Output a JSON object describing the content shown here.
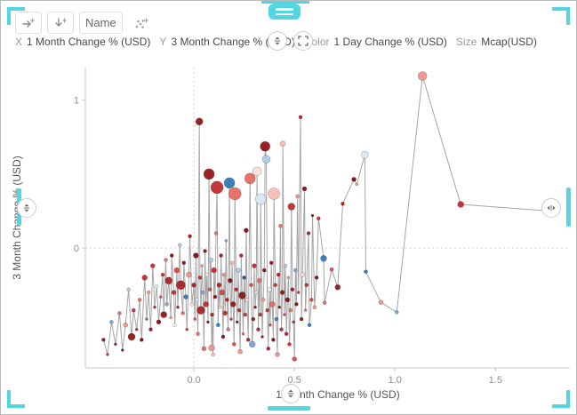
{
  "toolbar": {
    "rerun_button_icon": "arrow-right-plus",
    "drilldown_button_icon": "arrow-down-plus",
    "name_button_label": "Name",
    "scatter_button_icon": "scatter-dots-plus"
  },
  "bindings_bar": {
    "x_label": "X",
    "x_value": "1 Month Change % (USD)",
    "y_label": "Y",
    "y_value": "3 Month Change % (USD)",
    "color_label": "Color",
    "color_value": "1 Day Change % (USD)",
    "size_label": "Size",
    "size_value": "Mcap(USD)"
  },
  "colors": {
    "accent_teal": "#52d7e2",
    "axis_line": "#c9c9c9",
    "grid_dash": "#d4d4d4",
    "connector_line": "#a6a6a6",
    "tick_text": "#8f8f8f"
  },
  "chart_data": {
    "type": "scatter",
    "title": "",
    "x_axis": {
      "label": "1 Month Change % (USD)",
      "range": [
        -0.54,
        1.87
      ],
      "ticks": [
        0.0,
        0.5,
        1.0,
        1.5
      ],
      "tick_labels": [
        "0.0",
        "0.5",
        "1.0",
        "1.5"
      ]
    },
    "y_axis": {
      "label": "3 Month Change % (USD)",
      "range": [
        -0.81,
        1.22
      ],
      "ticks": [
        0,
        1
      ],
      "tick_labels": [
        "0",
        "1"
      ]
    },
    "color_by": "1 Day Change % (USD)",
    "size_by": "Mcap(USD)",
    "legend": "none",
    "grid": "dashed zero lines only",
    "connected": true,
    "palette": [
      "#7f0a10",
      "#8e1317",
      "#a81d22",
      "#c2282e",
      "#d6453c",
      "#e5685f",
      "#ef9185",
      "#f6bcb2",
      "#fbdfd9",
      "#f2f0ee",
      "#dbe7f3",
      "#abcbe6",
      "#74a6d4",
      "#2f76b5",
      "#1b4f8c"
    ],
    "points_format": [
      "x",
      "y",
      "radius_px",
      "palette_index"
    ],
    "points": [
      [
        -0.45,
        -0.62,
        2,
        1
      ],
      [
        -0.43,
        -0.72,
        1.5,
        3
      ],
      [
        -0.41,
        -0.5,
        2,
        12
      ],
      [
        -0.39,
        -0.65,
        1.5,
        1
      ],
      [
        -0.37,
        -0.44,
        2,
        5
      ],
      [
        -0.355,
        -0.69,
        1.5,
        0
      ],
      [
        -0.34,
        -0.52,
        2.5,
        6
      ],
      [
        -0.325,
        -0.28,
        2,
        11
      ],
      [
        -0.31,
        -0.6,
        4,
        1
      ],
      [
        -0.3,
        -0.42,
        2,
        3
      ],
      [
        -0.285,
        -0.55,
        1.5,
        2
      ],
      [
        -0.27,
        -0.35,
        2,
        5
      ],
      [
        -0.26,
        -0.62,
        2,
        0
      ],
      [
        -0.245,
        -0.2,
        3,
        3
      ],
      [
        -0.235,
        -0.48,
        1.5,
        13
      ],
      [
        -0.225,
        -0.3,
        2,
        6
      ],
      [
        -0.215,
        -0.55,
        2,
        1
      ],
      [
        -0.205,
        -0.12,
        2.5,
        3
      ],
      [
        -0.195,
        -0.4,
        1.5,
        2
      ],
      [
        -0.185,
        -0.26,
        2,
        10
      ],
      [
        -0.175,
        -0.5,
        2.5,
        0
      ],
      [
        -0.165,
        -0.33,
        1.5,
        4
      ],
      [
        -0.155,
        -0.18,
        2,
        3
      ],
      [
        -0.15,
        -0.45,
        3.5,
        1
      ],
      [
        -0.14,
        -0.08,
        2,
        5
      ],
      [
        -0.135,
        -0.38,
        2,
        12
      ],
      [
        -0.125,
        -0.22,
        4,
        2
      ],
      [
        -0.115,
        -0.47,
        1.5,
        6
      ],
      [
        -0.11,
        -0.05,
        2,
        0
      ],
      [
        -0.1,
        -0.3,
        2.5,
        3
      ],
      [
        -0.095,
        -0.52,
        2,
        9
      ],
      [
        -0.085,
        -0.15,
        3,
        4
      ],
      [
        -0.08,
        -0.4,
        1.5,
        1
      ],
      [
        -0.07,
        0.02,
        2,
        11
      ],
      [
        -0.065,
        -0.25,
        5,
        2
      ],
      [
        -0.055,
        -0.44,
        2,
        5
      ],
      [
        -0.05,
        -0.1,
        2,
        0
      ],
      [
        -0.04,
        -0.33,
        2.5,
        13
      ],
      [
        -0.035,
        -0.55,
        1.5,
        3
      ],
      [
        -0.025,
        -0.18,
        3,
        6
      ],
      [
        -0.02,
        0.08,
        2,
        1
      ],
      [
        -0.01,
        -0.38,
        2,
        8
      ],
      [
        0.0,
        -0.25,
        2.5,
        2
      ],
      [
        0.005,
        -0.48,
        1.5,
        4
      ],
      [
        0.01,
        -0.05,
        3,
        0
      ],
      [
        0.015,
        -0.35,
        2,
        10
      ],
      [
        0.02,
        -0.58,
        2,
        5
      ],
      [
        0.027,
        0.855,
        4,
        1
      ],
      [
        0.03,
        -0.2,
        2,
        3
      ],
      [
        0.035,
        -0.42,
        4.5,
        2
      ],
      [
        0.04,
        -0.12,
        1.5,
        6
      ],
      [
        0.045,
        -0.3,
        2,
        12
      ],
      [
        0.05,
        -0.68,
        2.5,
        5
      ],
      [
        0.055,
        -0.02,
        2,
        1
      ],
      [
        0.06,
        -0.38,
        3,
        3
      ],
      [
        0.065,
        -0.18,
        2,
        9
      ],
      [
        0.07,
        -0.5,
        1.5,
        0
      ],
      [
        0.075,
        0.5,
        6,
        1
      ],
      [
        0.08,
        -0.28,
        2,
        4
      ],
      [
        0.085,
        -0.08,
        2.5,
        11
      ],
      [
        0.088,
        -0.675,
        3.5,
        6
      ],
      [
        0.09,
        -0.45,
        2,
        2
      ],
      [
        0.095,
        -0.72,
        2,
        7
      ],
      [
        0.1,
        -0.15,
        3,
        3
      ],
      [
        0.105,
        -0.33,
        2,
        0
      ],
      [
        0.11,
        0.1,
        2,
        5
      ],
      [
        0.115,
        0.41,
        7,
        3
      ],
      [
        0.12,
        -0.52,
        2,
        13
      ],
      [
        0.125,
        -0.25,
        2.5,
        2
      ],
      [
        0.13,
        -0.4,
        1.5,
        8
      ],
      [
        0.135,
        -0.05,
        2,
        1
      ],
      [
        0.14,
        -0.3,
        3,
        4
      ],
      [
        0.145,
        -0.6,
        2,
        0
      ],
      [
        0.15,
        -0.18,
        2,
        6
      ],
      [
        0.155,
        -0.44,
        2.5,
        3
      ],
      [
        0.16,
        0.05,
        1.5,
        12
      ],
      [
        0.165,
        -0.35,
        2,
        2
      ],
      [
        0.17,
        -0.55,
        2,
        5
      ],
      [
        0.177,
        0.44,
        6,
        13
      ],
      [
        0.18,
        -0.22,
        2.5,
        0
      ],
      [
        0.185,
        -0.48,
        1.5,
        3
      ],
      [
        0.19,
        -0.1,
        2,
        7
      ],
      [
        0.195,
        -0.38,
        3,
        1
      ],
      [
        0.2,
        -0.65,
        2,
        4
      ],
      [
        0.204,
        0.367,
        7,
        5
      ],
      [
        0.21,
        -0.28,
        2,
        2
      ],
      [
        0.215,
        -0.5,
        1.5,
        0
      ],
      [
        0.22,
        -0.15,
        2.5,
        11
      ],
      [
        0.225,
        -0.42,
        2,
        3
      ],
      [
        0.23,
        -0.7,
        2.5,
        6
      ],
      [
        0.235,
        -0.05,
        2,
        2
      ],
      [
        0.24,
        -0.32,
        4,
        1
      ],
      [
        0.245,
        -0.58,
        1.5,
        5
      ],
      [
        0.25,
        -0.2,
        2,
        14
      ],
      [
        0.255,
        -0.45,
        2,
        3
      ],
      [
        0.26,
        0.12,
        2.5,
        0
      ],
      [
        0.265,
        -0.35,
        2,
        8
      ],
      [
        0.27,
        -0.62,
        2,
        2
      ],
      [
        0.279,
        0.47,
        6,
        5
      ],
      [
        0.285,
        -0.25,
        2,
        4
      ],
      [
        0.29,
        -0.65,
        3.5,
        12
      ],
      [
        0.295,
        -0.48,
        2,
        1
      ],
      [
        0.3,
        -0.12,
        2.5,
        3
      ],
      [
        0.305,
        -0.4,
        1.5,
        0
      ],
      [
        0.31,
        -0.3,
        2,
        10
      ],
      [
        0.314,
        0.518,
        5,
        8
      ],
      [
        0.32,
        -0.55,
        2,
        2
      ],
      [
        0.325,
        -0.22,
        2.5,
        5
      ],
      [
        0.33,
        -0.45,
        2,
        3
      ],
      [
        0.332,
        0.331,
        6,
        10
      ],
      [
        0.34,
        -0.6,
        1.5,
        1
      ],
      [
        0.345,
        -0.35,
        2,
        6
      ],
      [
        0.35,
        -0.15,
        2,
        0
      ],
      [
        0.354,
        0.687,
        5.5,
        1
      ],
      [
        0.36,
        0.6,
        4.5,
        11
      ],
      [
        0.365,
        -0.42,
        2,
        3
      ],
      [
        0.37,
        -0.68,
        2,
        2
      ],
      [
        0.375,
        -0.28,
        2.5,
        9
      ],
      [
        0.38,
        -0.52,
        1.5,
        4
      ],
      [
        0.385,
        -0.1,
        2,
        1
      ],
      [
        0.39,
        -0.38,
        3,
        5
      ],
      [
        0.395,
        -0.62,
        2,
        0
      ],
      [
        0.398,
        0.367,
        6.5,
        7
      ],
      [
        0.405,
        -0.25,
        2,
        3
      ],
      [
        0.41,
        -0.48,
        2,
        13
      ],
      [
        0.415,
        -0.72,
        2.5,
        6
      ],
      [
        0.42,
        -0.18,
        2,
        2
      ],
      [
        0.425,
        -0.4,
        1.5,
        0
      ],
      [
        0.43,
        0.15,
        2,
        5
      ],
      [
        0.435,
        -0.55,
        2,
        3
      ],
      [
        0.44,
        -0.3,
        2.5,
        1
      ],
      [
        0.442,
        0.705,
        3,
        7
      ],
      [
        0.45,
        -0.45,
        1.5,
        4
      ],
      [
        0.455,
        -0.12,
        2,
        11
      ],
      [
        0.46,
        -0.58,
        2,
        2
      ],
      [
        0.465,
        -0.35,
        2.5,
        0
      ],
      [
        0.47,
        -0.2,
        1.5,
        6
      ],
      [
        0.475,
        -0.65,
        2,
        3
      ],
      [
        0.48,
        -0.42,
        2,
        5
      ],
      [
        0.485,
        0.28,
        4,
        3
      ],
      [
        0.49,
        -0.28,
        2,
        1
      ],
      [
        0.495,
        -0.5,
        1.5,
        2
      ],
      [
        0.5,
        -0.75,
        2.5,
        4
      ],
      [
        0.505,
        -0.15,
        2,
        12
      ],
      [
        0.51,
        -0.38,
        2,
        0
      ],
      [
        0.515,
        0.35,
        2,
        6
      ],
      [
        0.52,
        -0.3,
        1.5,
        3
      ],
      [
        0.53,
        0.885,
        2,
        2
      ],
      [
        0.535,
        -0.48,
        2,
        1
      ],
      [
        0.54,
        -0.18,
        2.5,
        8
      ],
      [
        0.55,
        0.4,
        2.5,
        0
      ],
      [
        0.555,
        -0.42,
        1.5,
        5
      ],
      [
        0.56,
        -0.25,
        2,
        3
      ],
      [
        0.57,
        0.1,
        2,
        2
      ],
      [
        0.575,
        -0.52,
        2,
        13
      ],
      [
        0.585,
        -0.35,
        2,
        4
      ],
      [
        0.59,
        0.22,
        1.5,
        1
      ],
      [
        0.6,
        -0.4,
        2,
        6
      ],
      [
        0.61,
        -0.2,
        2,
        0
      ],
      [
        0.62,
        0.2,
        2,
        3
      ],
      [
        0.645,
        -0.07,
        3.5,
        13
      ],
      [
        0.65,
        -0.37,
        2,
        5
      ],
      [
        0.685,
        -0.145,
        2,
        4
      ],
      [
        0.715,
        -0.265,
        3,
        1
      ],
      [
        0.74,
        0.3,
        2,
        2
      ],
      [
        0.796,
        0.464,
        2.5,
        0
      ],
      [
        0.81,
        0.43,
        1.5,
        6
      ],
      [
        0.85,
        0.63,
        4,
        10
      ],
      [
        0.855,
        -0.16,
        2,
        13
      ],
      [
        0.93,
        -0.367,
        2.5,
        6
      ],
      [
        1.009,
        -0.434,
        2,
        12
      ],
      [
        1.137,
        1.163,
        5,
        6
      ],
      [
        1.327,
        0.295,
        3.5,
        3
      ],
      [
        1.77,
        0.25,
        2.5,
        2
      ]
    ]
  }
}
